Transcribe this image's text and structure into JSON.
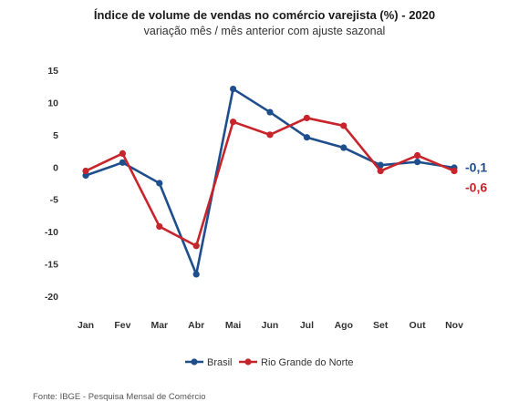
{
  "chart_data": {
    "type": "line",
    "title": "Índice de volume de vendas no comércio varejista (%) - 2020",
    "subtitle": "variação mês / mês anterior com ajuste sazonal",
    "categories": [
      "Jan",
      "Fev",
      "Mar",
      "Abr",
      "Mai",
      "Jun",
      "Jul",
      "Ago",
      "Set",
      "Out",
      "Nov"
    ],
    "ylim": [
      -20,
      15
    ],
    "yticks": [
      15,
      10,
      5,
      0,
      -5,
      -10,
      -15,
      -20
    ],
    "grid": false,
    "legend_position": "bottom",
    "series": [
      {
        "name": "Brasil",
        "color": "#1f4e8c",
        "values": [
          -1.3,
          0.7,
          -2.5,
          -16.6,
          12.1,
          8.5,
          4.6,
          3.0,
          0.3,
          0.8,
          -0.1
        ],
        "end_label": "-0,1"
      },
      {
        "name": "Rio Grande do Norte",
        "color": "#c8242b",
        "values": [
          -0.6,
          2.1,
          -9.2,
          -12.2,
          7.0,
          5.0,
          7.6,
          6.4,
          -0.6,
          1.8,
          -0.6
        ],
        "end_label": "-0,6"
      }
    ]
  },
  "source": "Fonte: IBGE - Pesquisa Mensal de Comércio"
}
